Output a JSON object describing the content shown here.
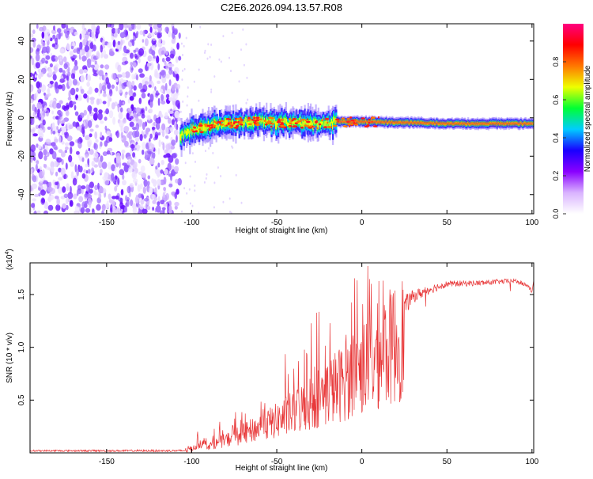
{
  "title": "C2E6.2026.094.13.57.R08",
  "chart_data": [
    {
      "type": "heatmap",
      "name": "spectrogram",
      "xlabel": "Height of straight line (km)",
      "ylabel": "Frequency (Hz)",
      "xlim": [
        -195,
        101
      ],
      "ylim": [
        -50,
        49
      ],
      "xticks": [
        -150,
        -100,
        -50,
        0,
        50,
        100
      ],
      "yticks": [
        -40,
        -20,
        0,
        20,
        40
      ],
      "noise_region_x": [
        -195,
        -107
      ],
      "signal_start_x": -107,
      "signal_track": [
        {
          "x": -107,
          "y": -10
        },
        {
          "x": -100,
          "y": -6
        },
        {
          "x": -80,
          "y": -3
        },
        {
          "x": -60,
          "y": -2
        },
        {
          "x": -40,
          "y": -3
        },
        {
          "x": -20,
          "y": -3
        },
        {
          "x": -15,
          "y": -2
        },
        {
          "x": 0,
          "y": -2
        },
        {
          "x": 50,
          "y": -3
        },
        {
          "x": 100,
          "y": -3
        }
      ],
      "colorbar": {
        "label": "Normalized spectral amplitude",
        "range": [
          0,
          1
        ],
        "ticks": [
          0.0,
          0.2,
          0.4,
          0.6,
          0.8
        ],
        "colors": [
          "#ffffff",
          "#d9b3ff",
          "#8a00ff",
          "#1900ff",
          "#00ccff",
          "#00ff33",
          "#eeff00",
          "#ff7700",
          "#ff0000",
          "#ff0080"
        ]
      }
    },
    {
      "type": "line",
      "name": "snr",
      "xlabel": "Height of straight line (km)",
      "ylabel": "SNR (10 * v/v)",
      "y_multiplier": "(x10",
      "y_multiplier_exp": "4",
      "y_multiplier_close": ")",
      "xlim": [
        -195,
        101
      ],
      "ylim": [
        0,
        1.8
      ],
      "xticks": [
        -150,
        -100,
        -50,
        0,
        50,
        100
      ],
      "yticks": [
        0.5,
        1.0,
        1.5
      ],
      "series_color": "#e8393a",
      "baseline_points": [
        {
          "x": -195,
          "y": 0.02
        },
        {
          "x": -105,
          "y": 0.02
        },
        {
          "x": -100,
          "y": 0.04
        },
        {
          "x": -95,
          "y": 0.12
        },
        {
          "x": -90,
          "y": 0.08
        },
        {
          "x": -80,
          "y": 0.15
        },
        {
          "x": -70,
          "y": 0.22
        },
        {
          "x": -60,
          "y": 0.3
        },
        {
          "x": -50,
          "y": 0.38
        },
        {
          "x": -40,
          "y": 0.48
        },
        {
          "x": -30,
          "y": 0.6
        },
        {
          "x": -20,
          "y": 0.72
        },
        {
          "x": -10,
          "y": 0.85
        },
        {
          "x": 0,
          "y": 1.0
        },
        {
          "x": 10,
          "y": 1.15
        },
        {
          "x": 20,
          "y": 1.3
        },
        {
          "x": 30,
          "y": 1.48
        },
        {
          "x": 40,
          "y": 1.55
        },
        {
          "x": 50,
          "y": 1.6
        },
        {
          "x": 70,
          "y": 1.61
        },
        {
          "x": 90,
          "y": 1.63
        },
        {
          "x": 98,
          "y": 1.58
        },
        {
          "x": 100,
          "y": 1.52
        },
        {
          "x": 101,
          "y": 1.65
        }
      ],
      "noise_amplitude": [
        {
          "x": -195,
          "a": 0.008
        },
        {
          "x": -105,
          "a": 0.01
        },
        {
          "x": -100,
          "a": 0.05
        },
        {
          "x": -80,
          "a": 0.12
        },
        {
          "x": -60,
          "a": 0.22
        },
        {
          "x": -40,
          "a": 0.35
        },
        {
          "x": -20,
          "a": 0.5
        },
        {
          "x": -10,
          "a": 0.55
        },
        {
          "x": 0,
          "a": 0.4
        },
        {
          "x": 10,
          "a": 0.3
        },
        {
          "x": 20,
          "a": 0.15
        },
        {
          "x": 30,
          "a": 0.06
        },
        {
          "x": 50,
          "a": 0.03
        },
        {
          "x": 101,
          "a": 0.02
        }
      ]
    }
  ]
}
